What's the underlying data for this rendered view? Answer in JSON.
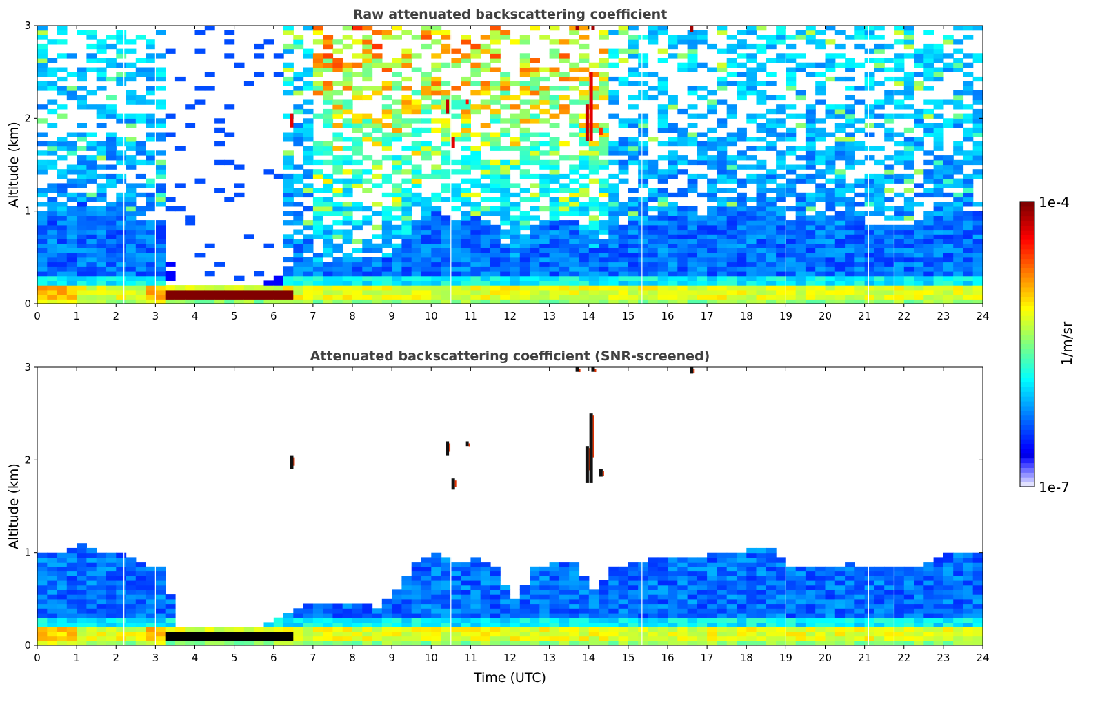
{
  "chart_data": {
    "type": "heatmap",
    "x_range": [
      0,
      24
    ],
    "y_range": [
      0,
      3
    ],
    "xticks": [
      "0",
      "1",
      "2",
      "3",
      "4",
      "5",
      "6",
      "7",
      "8",
      "9",
      "10",
      "11",
      "12",
      "13",
      "14",
      "15",
      "16",
      "17",
      "18",
      "19",
      "20",
      "21",
      "22",
      "23",
      "24"
    ],
    "yticks": [
      "0",
      "1",
      "2",
      "3"
    ],
    "xlabel": "Time (UTC)",
    "panels": [
      {
        "title": "Raw attenuated backscattering coefficient",
        "ylabel": "Altitude (km)",
        "screened": false
      },
      {
        "title": "Attenuated backscattering coefficient (SNR-screened)",
        "ylabel": "Altitude (km)",
        "screened": true
      }
    ],
    "colorbar": {
      "label": "1/m/sr",
      "min_label": "1e-7",
      "max_label": "1e-4",
      "log10_min": -7,
      "log10_max": -4,
      "colormap": "jet"
    },
    "time_step_h": 0.25,
    "data_end_h": 23.8,
    "missing_profiles_h": [
      2.2,
      3.0,
      10.5,
      15.35,
      19.0,
      21.1,
      21.75
    ],
    "mixing_layer_top_km": [
      1.0,
      1.0,
      1.1,
      1.0,
      1.0,
      0.9,
      0.85,
      0.22,
      0.22,
      0.22,
      0.22,
      0.22,
      0.3,
      0.42,
      0.45,
      0.45,
      0.45,
      0.42,
      0.6,
      0.9,
      1.0,
      0.9,
      0.95,
      0.85,
      0.5,
      0.85,
      0.9,
      0.9,
      0.6,
      0.85,
      0.9,
      0.95,
      0.95,
      0.95,
      1.0,
      1.0,
      1.05,
      1.05,
      0.85,
      0.85,
      0.85,
      0.9,
      0.85,
      0.85,
      0.85,
      0.9,
      1.0,
      1.0
    ],
    "surface_layer_top_km": 0.2,
    "surface_layer_log10": -5.2,
    "boundary_layer_log10": -6.3,
    "dense_layer": {
      "start_h": 3.25,
      "end_h": 6.4,
      "bottom_km": 0.05,
      "top_km": 0.15,
      "log10": -4.0
    },
    "raw_signal_gap": {
      "start_h": 3.25,
      "end_h": 6.2,
      "above_km": 0.2
    },
    "clouds": [
      {
        "t": 6.45,
        "z0": 1.9,
        "z1": 2.05,
        "log10": -4.3
      },
      {
        "t": 10.4,
        "z0": 2.05,
        "z1": 2.2,
        "log10": -4.2
      },
      {
        "t": 10.55,
        "z0": 1.68,
        "z1": 1.8,
        "log10": -4.3
      },
      {
        "t": 10.9,
        "z0": 2.15,
        "z1": 2.2,
        "log10": -4.4
      },
      {
        "t": 13.95,
        "z0": 1.75,
        "z1": 2.15,
        "log10": -4.2
      },
      {
        "t": 14.05,
        "z0": 1.75,
        "z1": 2.5,
        "log10": -4.3
      },
      {
        "t": 14.3,
        "z0": 1.82,
        "z1": 1.9,
        "log10": -4.5
      },
      {
        "t": 13.7,
        "z0": 2.95,
        "z1": 3.0,
        "log10": -4.1
      },
      {
        "t": 14.1,
        "z0": 2.95,
        "z1": 3.0,
        "log10": -4.1
      },
      {
        "t": 16.6,
        "z0": 2.93,
        "z1": 3.0,
        "log10": -4.1
      }
    ]
  }
}
